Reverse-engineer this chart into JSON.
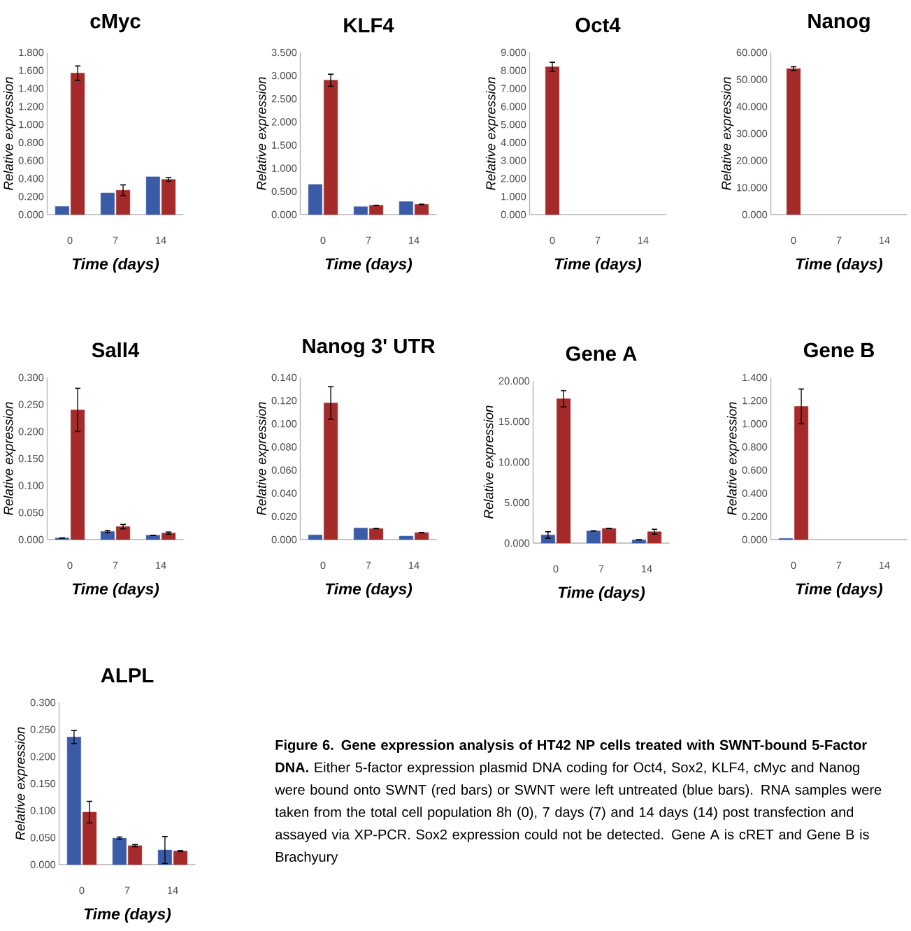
{
  "chart_data": [
    {
      "type": "bar",
      "title": "cMyc",
      "xlabel": "Time (days)",
      "ylabel": "Relative expression",
      "categories": [
        "0",
        "7",
        "14"
      ],
      "ylim": [
        0,
        1.8
      ],
      "yticks": [
        {
          "value": 0,
          "label": "0.000"
        },
        {
          "value": 0.2,
          "label": "0.200"
        },
        {
          "value": 0.4,
          "label": "0.400"
        },
        {
          "value": 0.6,
          "label": "0.600"
        },
        {
          "value": 0.8,
          "label": "0.800"
        },
        {
          "value": 1,
          "label": "1.000"
        },
        {
          "value": 1.2,
          "label": "1.200"
        },
        {
          "value": 1.4,
          "label": "1.400"
        },
        {
          "value": 1.6,
          "label": "1.600"
        },
        {
          "value": 1.8,
          "label": "1.800"
        }
      ],
      "series": [
        {
          "color": "#3a5ca8",
          "values": [
            0.09,
            0.24,
            0.42
          ]
        },
        {
          "color": "#a52a2a",
          "values": [
            1.57,
            0.27,
            0.39
          ],
          "errors": [
            0.08,
            0.06,
            0.02
          ]
        }
      ]
    },
    {
      "type": "bar",
      "title": "KLF4",
      "xlabel": "Time (days)",
      "ylabel": "Relative expression",
      "categories": [
        "0",
        "7",
        "14"
      ],
      "ylim": [
        0,
        3.5
      ],
      "yticks": [
        {
          "value": 0,
          "label": "0.000"
        },
        {
          "value": 0.5,
          "label": "0.500"
        },
        {
          "value": 1,
          "label": "1.000"
        },
        {
          "value": 1.5,
          "label": "1.500"
        },
        {
          "value": 2,
          "label": "2.000"
        },
        {
          "value": 2.5,
          "label": "2.500"
        },
        {
          "value": 3,
          "label": "3.000"
        },
        {
          "value": 3.5,
          "label": "3.500"
        }
      ],
      "series": [
        {
          "color": "#3a5ca8",
          "values": [
            0.65,
            0.17,
            0.28
          ]
        },
        {
          "color": "#a52a2a",
          "values": [
            2.9,
            0.2,
            0.22
          ],
          "errors": [
            0.13,
            null,
            null
          ]
        }
      ]
    },
    {
      "type": "bar",
      "title": "Oct4",
      "xlabel": "Time (days)",
      "ylabel": "Relative expression",
      "categories": [
        "0",
        "7",
        "14"
      ],
      "ylim": [
        0,
        9
      ],
      "yticks": [
        {
          "value": 0,
          "label": "0.000"
        },
        {
          "value": 1,
          "label": "1.000"
        },
        {
          "value": 2,
          "label": "2.000"
        },
        {
          "value": 3,
          "label": "3.000"
        },
        {
          "value": 4,
          "label": "4.000"
        },
        {
          "value": 5,
          "label": "5.000"
        },
        {
          "value": 6,
          "label": "6.000"
        },
        {
          "value": 7,
          "label": "7.000"
        },
        {
          "value": 8,
          "label": "8.000"
        },
        {
          "value": 9,
          "label": "9.000"
        }
      ],
      "series": [
        {
          "color": "#3a5ca8",
          "values": [
            null,
            null,
            null
          ]
        },
        {
          "color": "#a52a2a",
          "values": [
            8.2,
            null,
            null
          ],
          "errors": [
            0.25,
            null,
            null
          ]
        }
      ]
    },
    {
      "type": "bar",
      "title": "Nanog",
      "xlabel": "Time (days)",
      "ylabel": "Relative expression",
      "categories": [
        "0",
        "7",
        "14"
      ],
      "ylim": [
        0,
        60
      ],
      "yticks": [
        {
          "value": 0,
          "label": "0.000"
        },
        {
          "value": 10,
          "label": "10.000"
        },
        {
          "value": 20,
          "label": "20.000"
        },
        {
          "value": 30,
          "label": "30.000"
        },
        {
          "value": 40,
          "label": "40.000"
        },
        {
          "value": 50,
          "label": "50.000"
        },
        {
          "value": 60,
          "label": "60.000"
        }
      ],
      "series": [
        {
          "color": "#3a5ca8",
          "values": [
            null,
            null,
            null
          ]
        },
        {
          "color": "#a52a2a",
          "values": [
            54,
            null,
            null
          ],
          "errors": [
            0.7,
            null,
            null
          ]
        }
      ]
    },
    {
      "type": "bar",
      "title": "Sall4",
      "xlabel": "Time (days)",
      "ylabel": "Relative expression",
      "categories": [
        "0",
        "7",
        "14"
      ],
      "ylim": [
        0,
        0.3
      ],
      "yticks": [
        {
          "value": 0,
          "label": "0.000"
        },
        {
          "value": 0.05,
          "label": "0.050"
        },
        {
          "value": 0.1,
          "label": "0.100"
        },
        {
          "value": 0.15,
          "label": "0.150"
        },
        {
          "value": 0.2,
          "label": "0.200"
        },
        {
          "value": 0.25,
          "label": "0.250"
        },
        {
          "value": 0.3,
          "label": "0.300"
        }
      ],
      "series": [
        {
          "color": "#3a5ca8",
          "values": [
            0.003,
            0.015,
            0.008
          ],
          "errors": [
            null,
            0.002,
            null
          ]
        },
        {
          "color": "#a52a2a",
          "values": [
            0.24,
            0.024,
            0.012
          ],
          "errors": [
            0.04,
            0.004,
            0.002
          ]
        }
      ]
    },
    {
      "type": "bar",
      "title": "Nanog 3' UTR",
      "xlabel": "Time (days)",
      "ylabel": "Relative expression",
      "categories": [
        "0",
        "7",
        "14"
      ],
      "ylim": [
        0,
        0.14
      ],
      "yticks": [
        {
          "value": 0,
          "label": "0.000"
        },
        {
          "value": 0.02,
          "label": "0.020"
        },
        {
          "value": 0.04,
          "label": "0.040"
        },
        {
          "value": 0.06,
          "label": "0.060"
        },
        {
          "value": 0.08,
          "label": "0.080"
        },
        {
          "value": 0.1,
          "label": "0.100"
        },
        {
          "value": 0.12,
          "label": "0.120"
        },
        {
          "value": 0.14,
          "label": "0.140"
        }
      ],
      "series": [
        {
          "color": "#3a5ca8",
          "values": [
            0.004,
            0.01,
            0.003
          ]
        },
        {
          "color": "#a52a2a",
          "values": [
            0.118,
            0.0095,
            0.006
          ],
          "errors": [
            0.014,
            null,
            null
          ]
        }
      ]
    },
    {
      "type": "bar",
      "title": "Gene A",
      "xlabel": "Time (days)",
      "ylabel": "Relative expression",
      "categories": [
        "0",
        "7",
        "14"
      ],
      "ylim": [
        0,
        20
      ],
      "yticks": [
        {
          "value": 0,
          "label": "0.000"
        },
        {
          "value": 5,
          "label": "5.000"
        },
        {
          "value": 10,
          "label": "10.000"
        },
        {
          "value": 15,
          "label": "15.000"
        },
        {
          "value": 20,
          "label": "20.000"
        }
      ],
      "series": [
        {
          "color": "#3a5ca8",
          "values": [
            1.0,
            1.5,
            0.4
          ],
          "errors": [
            0.4,
            null,
            null
          ]
        },
        {
          "color": "#a52a2a",
          "values": [
            17.8,
            1.8,
            1.4
          ],
          "errors": [
            1.0,
            null,
            0.3
          ]
        }
      ]
    },
    {
      "type": "bar",
      "title": "Gene B",
      "xlabel": "Time (days)",
      "ylabel": "Relative expression",
      "categories": [
        "0",
        "7",
        "14"
      ],
      "ylim": [
        0,
        1.4
      ],
      "yticks": [
        {
          "value": 0,
          "label": "0.000"
        },
        {
          "value": 0.2,
          "label": "0.200"
        },
        {
          "value": 0.4,
          "label": "0.400"
        },
        {
          "value": 0.6,
          "label": "0.600"
        },
        {
          "value": 0.8,
          "label": "0.800"
        },
        {
          "value": 1,
          "label": "1.000"
        },
        {
          "value": 1.2,
          "label": "1.200"
        },
        {
          "value": 1.4,
          "label": "1.400"
        }
      ],
      "series": [
        {
          "color": "#3a5ca8",
          "values": [
            0.01,
            null,
            null
          ]
        },
        {
          "color": "#a52a2a",
          "values": [
            1.15,
            null,
            null
          ],
          "errors": [
            0.15,
            null,
            null
          ]
        }
      ]
    },
    {
      "type": "bar",
      "title": "ALPL",
      "xlabel": "Time (days)",
      "ylabel": "Relative expression",
      "categories": [
        "0",
        "7",
        "14"
      ],
      "ylim": [
        0,
        0.3
      ],
      "yticks": [
        {
          "value": 0,
          "label": "0.000"
        },
        {
          "value": 0.05,
          "label": "0.050"
        },
        {
          "value": 0.1,
          "label": "0.100"
        },
        {
          "value": 0.15,
          "label": "0.150"
        },
        {
          "value": 0.2,
          "label": "0.200"
        },
        {
          "value": 0.25,
          "label": "0.250"
        },
        {
          "value": 0.3,
          "label": "0.300"
        }
      ],
      "series": [
        {
          "color": "#3a5ca8",
          "values": [
            0.236,
            0.049,
            0.027
          ],
          "errors": [
            0.012,
            0.002,
            0.025
          ]
        },
        {
          "color": "#a52a2a",
          "values": [
            0.097,
            0.035,
            0.025
          ],
          "errors": [
            0.02,
            0.002,
            0.001
          ]
        }
      ]
    },
    {
      "type": "other",
      "annotations": [
        "**Figure 6. Gene expression analysis of HT42 NP cells treated with SWNT-bound 5-Factor DNA.** Either 5-factor expression plasmid DNA coding for Oct4, Sox2, KLF4, cMyc and Nanog were bound onto SWNT (red bars) or SWNT were left untreated (blue bars). RNA samples were taken from the total cell population 8h (0), 7 days (7) and 14 days (14) post transfection and assayed via XP-PCR. Sox2 expression could not be detected. Gene A is cRET and Gene B is Brachyury"
      ]
    }
  ]
}
